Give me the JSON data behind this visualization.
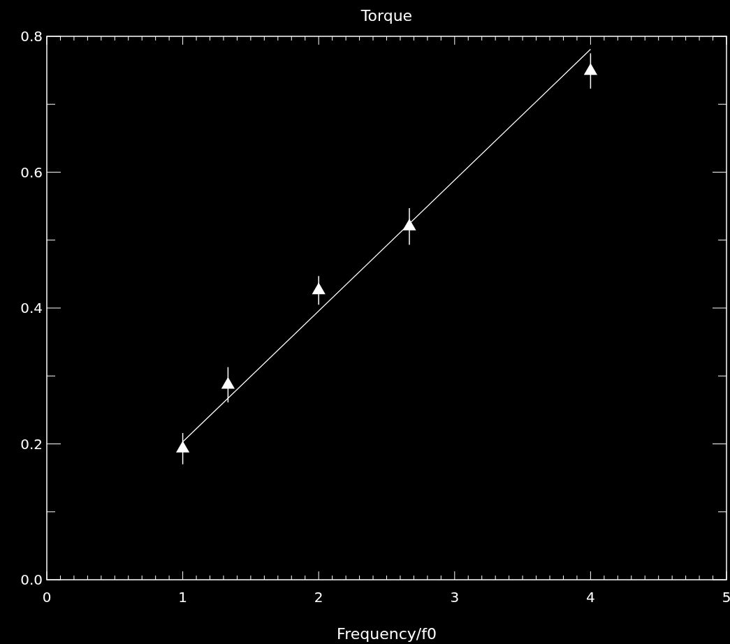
{
  "chart_data": {
    "type": "scatter",
    "title": "Torque",
    "xlabel": "Frequency/f0",
    "xlim": [
      0,
      5
    ],
    "ylim": [
      0,
      0.8
    ],
    "xticks": [
      0,
      {
        "value": 0.1,
        "label": null
      },
      {
        "value": 0.2,
        "label": null
      },
      {
        "value": 0.3,
        "label": null
      },
      {
        "value": 0.4,
        "label": null
      },
      {
        "value": 0.5,
        "label": null
      },
      {
        "value": 0.6,
        "label": null
      },
      {
        "value": 0.7,
        "label": null
      },
      {
        "value": 0.8,
        "label": null
      },
      {
        "value": 0.9,
        "label": null
      },
      1,
      {
        "value": 1.1,
        "label": null
      },
      {
        "value": 1.2,
        "label": null
      },
      {
        "value": 1.3,
        "label": null
      },
      {
        "value": 1.4,
        "label": null
      },
      {
        "value": 1.5,
        "label": null
      },
      {
        "value": 1.6,
        "label": null
      },
      {
        "value": 1.7,
        "label": null
      },
      {
        "value": 1.8,
        "label": null
      },
      {
        "value": 1.9,
        "label": null
      },
      2,
      {
        "value": 2.1,
        "label": null
      },
      {
        "value": 2.2,
        "label": null
      },
      {
        "value": 2.3,
        "label": null
      },
      {
        "value": 2.4,
        "label": null
      },
      {
        "value": 2.5,
        "label": null
      },
      {
        "value": 2.6,
        "label": null
      },
      {
        "value": 2.7,
        "label": null
      },
      {
        "value": 2.8,
        "label": null
      },
      {
        "value": 2.9,
        "label": null
      },
      3,
      {
        "value": 3.1,
        "label": null
      },
      {
        "value": 3.2,
        "label": null
      },
      {
        "value": 3.3,
        "label": null
      },
      {
        "value": 3.4,
        "label": null
      },
      {
        "value": 3.5,
        "label": null
      },
      {
        "value": 3.6,
        "label": null
      },
      {
        "value": 3.7,
        "label": null
      },
      {
        "value": 3.8,
        "label": null
      },
      {
        "value": 3.9,
        "label": null
      },
      4,
      {
        "value": 4.1,
        "label": null
      },
      {
        "value": 4.2,
        "label": null
      },
      {
        "value": 4.3,
        "label": null
      },
      {
        "value": 4.4,
        "label": null
      },
      {
        "value": 4.5,
        "label": null
      },
      {
        "value": 4.6,
        "label": null
      },
      {
        "value": 4.7,
        "label": null
      },
      {
        "value": 4.8,
        "label": null
      },
      {
        "value": 4.9,
        "label": null
      },
      5
    ],
    "yticks": [
      {
        "value": 0,
        "label": "0.0"
      },
      {
        "value": 0.1,
        "label": null
      },
      0.2,
      {
        "value": 0.3,
        "label": null
      },
      0.4,
      {
        "value": 0.5,
        "label": null
      },
      0.6,
      {
        "value": 0.7,
        "label": null
      },
      0.8
    ],
    "grid": false,
    "series": [
      {
        "type": "scatter",
        "color": "#ffffff",
        "marker": "triangle",
        "x": [
          1,
          1.333,
          2,
          2.667,
          4
        ],
        "values": [
          0.193,
          0.287,
          0.426,
          0.52,
          0.749
        ],
        "errors": [
          0.023,
          0.026,
          0.021,
          0.027,
          0.026
        ]
      },
      {
        "type": "line",
        "color": "#ffffff",
        "line_style": "solid",
        "x": [
          1,
          4
        ],
        "values": [
          0.203,
          0.781
        ]
      }
    ]
  }
}
